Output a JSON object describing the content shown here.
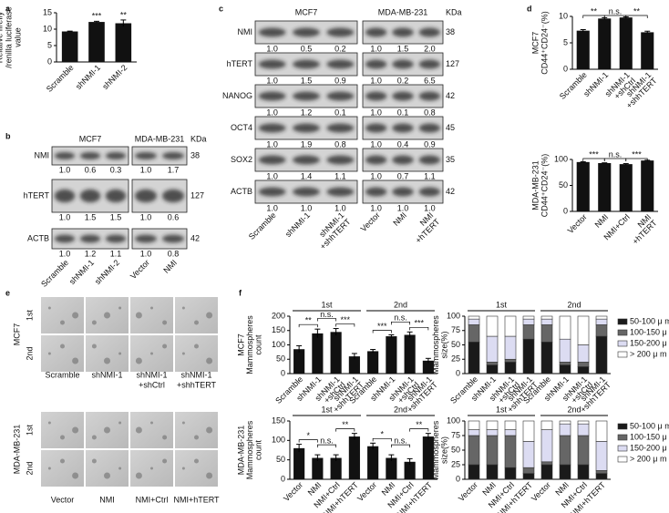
{
  "panel_labels": [
    "a",
    "b",
    "c",
    "d",
    "e",
    "f"
  ],
  "chart_data": [
    {
      "type": "bar",
      "ylabel": [
        "Relative firefly",
        "/renilla luciferase",
        "value"
      ],
      "categories": [
        "Scramble",
        "shNMI-1",
        "shNMI-2"
      ],
      "values": [
        9.3,
        12.2,
        11.8
      ],
      "errors": [
        0.1,
        0.2,
        1.0
      ],
      "color": "#111111",
      "ylim": [
        0,
        15
      ],
      "yticks": [
        0,
        5,
        10,
        15
      ],
      "annotations": [
        "***",
        "**"
      ]
    },
    {
      "type": "bar",
      "ylabel": [
        "MCF7",
        "CD44⁺CD24⁻(%)"
      ],
      "categories": [
        "Scramble",
        "shNMI-1",
        [
          "shNMI-1",
          "+shCtrl"
        ],
        [
          "shNMI-1",
          "+shhTERT"
        ]
      ],
      "values": [
        7.3,
        9.6,
        9.8,
        7.0
      ],
      "errors": [
        0.2,
        0.15,
        0.1,
        0.2
      ],
      "color": "#111111",
      "ylim": [
        0,
        10
      ],
      "yticks": [
        0,
        5,
        10
      ],
      "annotations": [
        "**",
        "n.s.",
        "**"
      ]
    },
    {
      "type": "bar",
      "ylabel": [
        "MDA-MB-231",
        "CD44⁺CD24⁻(%)"
      ],
      "categories": [
        "Vector",
        "NMI",
        "NMI+Ctrl",
        [
          "NMI",
          "+hTERT"
        ]
      ],
      "values": [
        95,
        93,
        91,
        98
      ],
      "errors": [
        0.5,
        0.5,
        1,
        0.5
      ],
      "color": "#111111",
      "ylim": [
        0,
        100
      ],
      "yticks": [
        0,
        50,
        100
      ],
      "annotations": [
        "***",
        "n.s.",
        "***"
      ]
    },
    {
      "type": "bar",
      "ylabel": [
        "MCF7",
        "Mammospheres",
        "count"
      ],
      "groups": [
        "1st",
        "2nd"
      ],
      "categories": [
        "Scramble",
        "shNMI-1",
        [
          "shNMI-1",
          "+shCtrl"
        ],
        [
          "shNMI-1",
          "+shhTERT"
        ],
        "Scramble",
        "shNMI-1",
        [
          "shNMI-1",
          "+shCtrl"
        ],
        [
          "shNMI-1",
          "+shhTERT"
        ]
      ],
      "values": [
        85,
        140,
        145,
        60,
        78,
        130,
        135,
        45
      ],
      "errors": [
        12,
        15,
        12,
        10,
        6,
        5,
        10,
        8
      ],
      "color": "#111111",
      "ylim": [
        0,
        200
      ],
      "yticks": [
        0,
        50,
        100,
        150,
        200
      ],
      "annotations": [
        "**",
        "n.s.",
        "***",
        "***",
        "n.s.",
        "***"
      ]
    },
    {
      "type": "stacked_bar",
      "ylabel": [
        "Mammospheres",
        "size(%)"
      ],
      "groups": [
        "1st",
        "2nd"
      ],
      "categories": [
        "Scramble",
        "shNMI-1",
        [
          "shNMI-1",
          "+shCtrl"
        ],
        [
          "shNMI-1",
          "+shhTERT"
        ],
        "Scramble",
        "shNMI-1",
        [
          "shNMI-1",
          "+shCtrl"
        ],
        [
          "shNMI-1",
          "+shhTERT"
        ]
      ],
      "series": [
        {
          "name": "50-100 μ m",
          "color": "#1a1a1a",
          "values": [
            55,
            15,
            20,
            60,
            55,
            15,
            12,
            65
          ]
        },
        {
          "name": "100-150 μ m",
          "color": "#666666",
          "values": [
            30,
            5,
            5,
            25,
            30,
            5,
            8,
            20
          ]
        },
        {
          "name": "150-200 μ m",
          "color": "#dcdcf2",
          "values": [
            10,
            45,
            40,
            10,
            10,
            40,
            30,
            10
          ]
        },
        {
          "name": "> 200 μ m",
          "color": "#ffffff",
          "values": [
            5,
            35,
            35,
            5,
            5,
            40,
            50,
            5
          ]
        }
      ],
      "ylim": [
        0,
        100
      ],
      "yticks": [
        0,
        25,
        50,
        75,
        100
      ]
    },
    {
      "type": "bar",
      "ylabel": [
        "MDA-MB-231",
        "Mammospheres",
        "count"
      ],
      "groups": [
        "1st",
        "2nd"
      ],
      "categories": [
        "Vector",
        "NMI",
        "NMI+Ctrl",
        "NMI+hTERT",
        "Vector",
        "NMI",
        "NMI+Ctrl",
        "NMI+hTERT"
      ],
      "values": [
        80,
        55,
        55,
        110,
        85,
        55,
        45,
        110
      ],
      "errors": [
        10,
        8,
        8,
        8,
        8,
        8,
        8,
        8
      ],
      "color": "#111111",
      "ylim": [
        0,
        150
      ],
      "yticks": [
        0,
        50,
        100,
        150
      ],
      "annotations": [
        "*",
        "n.s.",
        "**",
        "*",
        "n.s.",
        "**"
      ]
    },
    {
      "type": "stacked_bar",
      "ylabel": [
        "Mammospheres",
        "size(%)"
      ],
      "groups": [
        "1st",
        "2nd"
      ],
      "categories": [
        "Vector",
        "NMI",
        "NMI+Ctrl",
        "NMI+hTERT",
        "Vector",
        "NMI",
        "NMI+Ctrl",
        "NMI+hTERT"
      ],
      "series": [
        {
          "name": "50-100 μ m",
          "color": "#1a1a1a",
          "values": [
            25,
            25,
            20,
            10,
            25,
            25,
            25,
            10
          ]
        },
        {
          "name": "100-150 μ m",
          "color": "#666666",
          "values": [
            50,
            50,
            55,
            10,
            5,
            50,
            50,
            5
          ]
        },
        {
          "name": "150-200 μ m",
          "color": "#dcdcf2",
          "values": [
            10,
            10,
            10,
            45,
            55,
            20,
            20,
            50
          ]
        },
        {
          "name": "> 200 μ m",
          "color": "#ffffff",
          "values": [
            15,
            15,
            15,
            35,
            15,
            5,
            5,
            35
          ]
        }
      ],
      "ylim": [
        0,
        100
      ],
      "yticks": [
        0,
        25,
        50,
        75,
        100
      ]
    }
  ],
  "blots": [
    {
      "cell_lines": [
        "MCF7",
        "MDA-MB-231"
      ],
      "unit": "KDa",
      "lanes": [
        [
          "Scramble",
          "shNMI-1",
          "shNMI-2"
        ],
        [
          "Vector",
          "NMI"
        ]
      ],
      "rows": [
        {
          "protein": "NMI",
          "kda": 38,
          "quant": [
            [
              "1.0",
              "0.6",
              "0.3"
            ],
            [
              "1.0",
              "1.7"
            ]
          ]
        },
        {
          "protein": "hTERT",
          "kda": 127,
          "quant": [
            [
              "1.0",
              "1.5",
              "1.5"
            ],
            [
              "1.0",
              "0.6"
            ]
          ]
        },
        {
          "protein": "ACTB",
          "kda": 42,
          "quant": [
            [
              "1.0",
              "1.2",
              "1.1"
            ],
            [
              "1.0",
              "0.8"
            ]
          ]
        }
      ]
    },
    {
      "cell_lines": [
        "MCF7",
        "MDA-MB-231"
      ],
      "unit": "KDa",
      "lanes": [
        [
          "Scramble",
          "shNMI-1",
          [
            "shNMI-1",
            "+shhTERT"
          ]
        ],
        [
          "Vector",
          "NMI",
          [
            "NMI",
            "+hTERT"
          ]
        ]
      ],
      "rows": [
        {
          "protein": "NMI",
          "kda": 38,
          "quant": [
            [
              "1.0",
              "0.5",
              "0.2"
            ],
            [
              "1.0",
              "1.5",
              "2.0"
            ]
          ]
        },
        {
          "protein": "hTERT",
          "kda": 127,
          "quant": [
            [
              "1.0",
              "1.5",
              "0.9"
            ],
            [
              "1.0",
              "0.2",
              "6.5"
            ]
          ]
        },
        {
          "protein": "NANOG",
          "kda": 42,
          "quant": [
            [
              "1.0",
              "1.2",
              "0.1"
            ],
            [
              "1.0",
              "0.1",
              "0.8"
            ]
          ]
        },
        {
          "protein": "OCT4",
          "kda": 45,
          "quant": [
            [
              "1.0",
              "1.9",
              "0.8"
            ],
            [
              "1.0",
              "0.4",
              "0.9"
            ]
          ]
        },
        {
          "protein": "SOX2",
          "kda": 35,
          "quant": [
            [
              "1.0",
              "1.4",
              "1.1"
            ],
            [
              "1.0",
              "0.7",
              "1.1"
            ]
          ]
        },
        {
          "protein": "ACTB",
          "kda": 42,
          "quant": [
            [
              "1.0",
              "1.0",
              "1.0"
            ],
            [
              "1.0",
              "1.0",
              "1.0"
            ]
          ]
        }
      ]
    }
  ],
  "images": [
    {
      "cell_line": "MCF7",
      "rows": [
        "1st",
        "2nd"
      ],
      "columns": [
        "Scramble",
        "shNMI-1",
        [
          "shNMI-1",
          "+shCtrl"
        ],
        [
          "shNMI-1",
          "+shhTERT"
        ]
      ]
    },
    {
      "cell_line": "MDA-MB-231",
      "rows": [
        "1st",
        "2nd"
      ],
      "columns": [
        "Vector",
        "NMI",
        "NMI+Ctrl",
        "NMI+hTERT"
      ]
    }
  ]
}
